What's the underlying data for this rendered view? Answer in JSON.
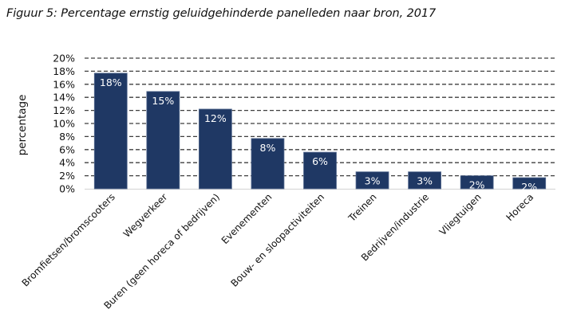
{
  "title": "Figuur 5: Percentage ernstig geluidgehinderde panelleden naar bron, 2017",
  "colors": {
    "bar": "#1f3864",
    "bar_edge": "#5b6f93",
    "grid": "#3f3f3f",
    "axis": "#d9d9d9",
    "label_inside": "#ffffff"
  },
  "chart_data": {
    "type": "bar",
    "title": "Figuur 5: Percentage ernstig geluidgehinderde panelleden naar bron, 2017",
    "xlabel": "",
    "ylabel": "percentage",
    "ylim": [
      0,
      20
    ],
    "yticks": [
      "0%",
      "2%",
      "4%",
      "6%",
      "8%",
      "10%",
      "12%",
      "14%",
      "16%",
      "18%",
      "20%"
    ],
    "ytick_values": [
      0,
      2,
      4,
      6,
      8,
      10,
      12,
      14,
      16,
      18,
      20
    ],
    "grid": "dashed horizontal",
    "legend": "none",
    "categories": [
      "Bromfietsen/bromscooters",
      "Wegverkeer",
      "Buren (geen horeca of bedrijven)",
      "Evenementen",
      "Bouw- en sloopactiviteiten",
      "Treinen",
      "Bedrijven/industrie",
      "Vliegtuigen",
      "Horeca"
    ],
    "values": [
      17.7,
      14.9,
      12.2,
      7.7,
      5.6,
      2.6,
      2.6,
      2.0,
      1.7
    ],
    "data_labels": [
      "18%",
      "15%",
      "12%",
      "8%",
      "6%",
      "3%",
      "3%",
      "2%",
      "2%"
    ]
  }
}
